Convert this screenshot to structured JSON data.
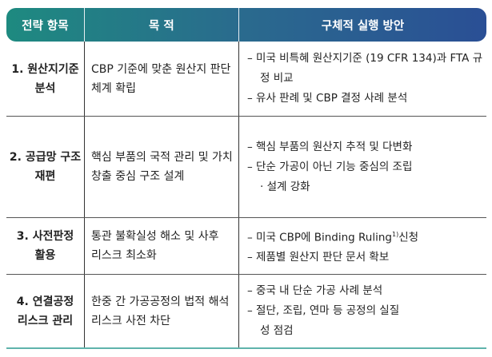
{
  "header": {
    "col1": "전략 항목",
    "col2": "목 적",
    "col3": "구체적 실행 방안"
  },
  "rows": [
    {
      "item": [
        "1. 원산지기준",
        "분석"
      ],
      "purpose": [
        "CBP 기준에 맞춘 원산지 판단",
        "체계 확립"
      ],
      "actions": [
        "– 미국 비특혜 원산지기준 (19 CFR 134)과 FTA 규정 비교",
        "– 유사 판례 및 CBP 결정 사례 분석"
      ]
    },
    {
      "item": [
        "2. 공급망 구조",
        "재편"
      ],
      "purpose": [
        "핵심 부품의 국적 관리 및 가치",
        "창출 중심 구조 설계"
      ],
      "actions": [
        "– 핵심 부품의 원산지 추적 및 다변화",
        "– 단순 가공이 아닌 기능 중심의 조립 · 설계 강화"
      ]
    },
    {
      "item": [
        "3. 사전판정",
        "활용"
      ],
      "purpose": [
        "통관 불확실성 해소 및 사후",
        "리스크 최소화"
      ],
      "actions": [
        "– 미국 CBP에 Binding Ruling",
        "1)",
        "신청",
        "– 제품별 원산지 판단 문서 확보"
      ]
    },
    {
      "item": [
        "4. 연결공정",
        "리스크 관리"
      ],
      "purpose": [
        "한중 간 가공공정의 법적 해석",
        "리스크 사전 차단"
      ],
      "actions": [
        "– 중국 내 단순 가공 사례 분석",
        "– 절단, 조립, 연마 등 공정의 실질성 점검"
      ]
    }
  ]
}
